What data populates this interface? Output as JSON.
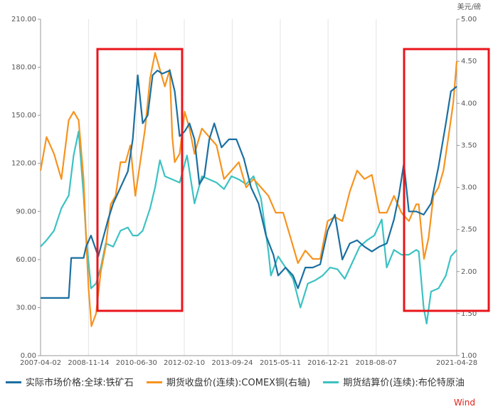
{
  "chart_data": {
    "type": "line",
    "x_ticks": [
      "2007-04-02",
      "2008-11-14",
      "2010-06-30",
      "2012-02-10",
      "2013-09-24",
      "2015-05-11",
      "2016-12-21",
      "2018-08-07",
      "2021-04-28"
    ],
    "y_left": {
      "ticks": [
        "0.00",
        "30.00",
        "60.00",
        "90.00",
        "120.00",
        "150.00",
        "180.00",
        "210.00"
      ],
      "lim": [
        0,
        210
      ]
    },
    "y_right": {
      "unit": "美元/磅",
      "ticks": [
        "1.00",
        "1.50",
        "2.00",
        "2.50",
        "3.00",
        "3.50",
        "4.00",
        "4.50",
        "5.00"
      ],
      "lim": [
        1.0,
        5.0
      ]
    },
    "grid": "vertical",
    "series": [
      {
        "name": "实际市场价格:全球:铁矿石",
        "axis": "left",
        "color": "#1a6fa0",
        "points": [
          [
            "2007-04-02",
            36
          ],
          [
            "2008-01-15",
            36
          ],
          [
            "2008-03-15",
            36
          ],
          [
            "2008-04-15",
            61
          ],
          [
            "2008-09-15",
            61
          ],
          [
            "2008-10-15",
            68
          ],
          [
            "2008-12-15",
            75
          ],
          [
            "2009-03-15",
            62
          ],
          [
            "2009-07-15",
            85
          ],
          [
            "2009-09-15",
            95
          ],
          [
            "2009-12-15",
            105
          ],
          [
            "2010-03-15",
            115
          ],
          [
            "2010-05-15",
            135
          ],
          [
            "2010-07-15",
            175
          ],
          [
            "2010-09-15",
            145
          ],
          [
            "2010-11-15",
            150
          ],
          [
            "2011-01-15",
            175
          ],
          [
            "2011-03-15",
            178
          ],
          [
            "2011-05-15",
            176
          ],
          [
            "2011-08-15",
            178
          ],
          [
            "2011-10-15",
            165
          ],
          [
            "2011-12-15",
            137
          ],
          [
            "2012-02-15",
            140
          ],
          [
            "2012-04-15",
            145
          ],
          [
            "2012-06-15",
            135
          ],
          [
            "2012-08-15",
            107
          ],
          [
            "2012-10-15",
            112
          ],
          [
            "2012-12-15",
            135
          ],
          [
            "2013-02-15",
            145
          ],
          [
            "2013-05-15",
            130
          ],
          [
            "2013-08-15",
            135
          ],
          [
            "2013-11-15",
            135
          ],
          [
            "2014-02-15",
            123
          ],
          [
            "2014-05-15",
            105
          ],
          [
            "2014-08-15",
            95
          ],
          [
            "2014-11-15",
            75
          ],
          [
            "2015-02-15",
            63
          ],
          [
            "2015-04-15",
            50
          ],
          [
            "2015-07-15",
            55
          ],
          [
            "2015-10-15",
            50
          ],
          [
            "2015-12-15",
            42
          ],
          [
            "2016-03-15",
            55
          ],
          [
            "2016-06-15",
            55
          ],
          [
            "2016-09-15",
            57
          ],
          [
            "2016-12-15",
            78
          ],
          [
            "2017-03-15",
            88
          ],
          [
            "2017-06-15",
            60
          ],
          [
            "2017-09-15",
            70
          ],
          [
            "2017-12-15",
            72
          ],
          [
            "2018-03-15",
            68
          ],
          [
            "2018-06-15",
            65
          ],
          [
            "2018-09-15",
            68
          ],
          [
            "2018-12-15",
            70
          ],
          [
            "2019-03-15",
            85
          ],
          [
            "2019-05-15",
            100
          ],
          [
            "2019-07-15",
            120
          ],
          [
            "2019-09-15",
            90
          ],
          [
            "2019-12-15",
            90
          ],
          [
            "2020-03-15",
            88
          ],
          [
            "2020-06-15",
            95
          ],
          [
            "2020-09-15",
            118
          ],
          [
            "2020-12-15",
            145
          ],
          [
            "2021-02-15",
            165
          ],
          [
            "2021-04-28",
            168
          ]
        ]
      },
      {
        "name": "期货收盘价(连续):COMEX铜(右轴)",
        "axis": "right",
        "color": "#f7931e",
        "points": [
          [
            "2007-04-02",
            3.2
          ],
          [
            "2007-06-15",
            3.6
          ],
          [
            "2007-09-15",
            3.4
          ],
          [
            "2007-12-15",
            3.1
          ],
          [
            "2008-03-15",
            3.8
          ],
          [
            "2008-05-15",
            3.9
          ],
          [
            "2008-07-15",
            3.8
          ],
          [
            "2008-09-15",
            3.1
          ],
          [
            "2008-10-15",
            2.4
          ],
          [
            "2008-11-15",
            1.8
          ],
          [
            "2008-12-20",
            1.35
          ],
          [
            "2009-02-15",
            1.5
          ],
          [
            "2009-04-15",
            2.0
          ],
          [
            "2009-06-15",
            2.3
          ],
          [
            "2009-08-15",
            2.8
          ],
          [
            "2009-10-15",
            2.9
          ],
          [
            "2009-12-15",
            3.3
          ],
          [
            "2010-02-15",
            3.3
          ],
          [
            "2010-04-15",
            3.5
          ],
          [
            "2010-06-15",
            2.9
          ],
          [
            "2010-08-15",
            3.3
          ],
          [
            "2010-10-15",
            3.7
          ],
          [
            "2010-12-15",
            4.3
          ],
          [
            "2011-02-15",
            4.6
          ],
          [
            "2011-04-15",
            4.4
          ],
          [
            "2011-06-15",
            4.2
          ],
          [
            "2011-08-15",
            4.4
          ],
          [
            "2011-09-15",
            3.6
          ],
          [
            "2011-10-15",
            3.3
          ],
          [
            "2011-12-15",
            3.4
          ],
          [
            "2012-02-15",
            3.9
          ],
          [
            "2012-04-15",
            3.7
          ],
          [
            "2012-06-15",
            3.4
          ],
          [
            "2012-09-15",
            3.7
          ],
          [
            "2012-12-15",
            3.6
          ],
          [
            "2013-03-15",
            3.5
          ],
          [
            "2013-06-15",
            3.1
          ],
          [
            "2013-09-15",
            3.2
          ],
          [
            "2013-12-15",
            3.3
          ],
          [
            "2014-03-15",
            3.0
          ],
          [
            "2014-06-15",
            3.1
          ],
          [
            "2014-09-15",
            3.0
          ],
          [
            "2014-12-15",
            2.9
          ],
          [
            "2015-03-15",
            2.7
          ],
          [
            "2015-06-15",
            2.7
          ],
          [
            "2015-09-15",
            2.4
          ],
          [
            "2015-12-15",
            2.1
          ],
          [
            "2016-03-15",
            2.25
          ],
          [
            "2016-06-15",
            2.15
          ],
          [
            "2016-09-15",
            2.15
          ],
          [
            "2016-12-15",
            2.6
          ],
          [
            "2017-03-15",
            2.65
          ],
          [
            "2017-06-15",
            2.6
          ],
          [
            "2017-09-15",
            2.95
          ],
          [
            "2017-12-15",
            3.2
          ],
          [
            "2018-03-15",
            3.1
          ],
          [
            "2018-06-15",
            3.15
          ],
          [
            "2018-09-15",
            2.7
          ],
          [
            "2018-12-15",
            2.7
          ],
          [
            "2019-03-15",
            2.9
          ],
          [
            "2019-06-15",
            2.7
          ],
          [
            "2019-09-15",
            2.6
          ],
          [
            "2019-12-15",
            2.8
          ],
          [
            "2020-01-15",
            2.8
          ],
          [
            "2020-03-20",
            2.15
          ],
          [
            "2020-05-15",
            2.4
          ],
          [
            "2020-07-15",
            2.9
          ],
          [
            "2020-09-15",
            3.0
          ],
          [
            "2020-11-15",
            3.2
          ],
          [
            "2021-01-15",
            3.6
          ],
          [
            "2021-03-15",
            4.0
          ],
          [
            "2021-04-28",
            4.5
          ]
        ]
      },
      {
        "name": "期货结算价(连续):布伦特原油",
        "axis": "left",
        "color": "#3cc2c2",
        "points": [
          [
            "2007-04-02",
            68
          ],
          [
            "2007-06-15",
            72
          ],
          [
            "2007-09-15",
            78
          ],
          [
            "2007-12-15",
            92
          ],
          [
            "2008-03-15",
            100
          ],
          [
            "2008-05-15",
            125
          ],
          [
            "2008-07-15",
            140
          ],
          [
            "2008-09-15",
            100
          ],
          [
            "2008-10-15",
            75
          ],
          [
            "2008-12-15",
            42
          ],
          [
            "2009-02-15",
            45
          ],
          [
            "2009-04-15",
            55
          ],
          [
            "2009-06-15",
            70
          ],
          [
            "2009-09-15",
            68
          ],
          [
            "2009-12-15",
            78
          ],
          [
            "2010-03-15",
            80
          ],
          [
            "2010-05-15",
            75
          ],
          [
            "2010-07-15",
            75
          ],
          [
            "2010-09-15",
            78
          ],
          [
            "2010-12-15",
            92
          ],
          [
            "2011-02-15",
            105
          ],
          [
            "2011-04-15",
            122
          ],
          [
            "2011-06-15",
            112
          ],
          [
            "2011-09-15",
            110
          ],
          [
            "2011-12-15",
            108
          ],
          [
            "2012-03-15",
            125
          ],
          [
            "2012-06-15",
            95
          ],
          [
            "2012-09-15",
            112
          ],
          [
            "2012-12-15",
            110
          ],
          [
            "2013-03-15",
            108
          ],
          [
            "2013-06-15",
            104
          ],
          [
            "2013-09-15",
            112
          ],
          [
            "2013-12-15",
            110
          ],
          [
            "2014-03-15",
            107
          ],
          [
            "2014-06-15",
            112
          ],
          [
            "2014-09-15",
            98
          ],
          [
            "2014-12-15",
            65
          ],
          [
            "2015-01-15",
            50
          ],
          [
            "2015-04-15",
            62
          ],
          [
            "2015-07-15",
            55
          ],
          [
            "2015-10-15",
            48
          ],
          [
            "2016-01-15",
            30
          ],
          [
            "2016-04-15",
            45
          ],
          [
            "2016-07-15",
            47
          ],
          [
            "2016-10-15",
            50
          ],
          [
            "2017-01-15",
            55
          ],
          [
            "2017-04-15",
            54
          ],
          [
            "2017-07-15",
            48
          ],
          [
            "2017-10-15",
            58
          ],
          [
            "2018-01-15",
            68
          ],
          [
            "2018-04-15",
            72
          ],
          [
            "2018-07-15",
            75
          ],
          [
            "2018-10-15",
            85
          ],
          [
            "2018-12-15",
            55
          ],
          [
            "2019-03-15",
            66
          ],
          [
            "2019-06-15",
            63
          ],
          [
            "2019-09-15",
            63
          ],
          [
            "2019-12-15",
            66
          ],
          [
            "2020-01-15",
            65
          ],
          [
            "2020-03-15",
            30
          ],
          [
            "2020-04-21",
            20
          ],
          [
            "2020-06-15",
            40
          ],
          [
            "2020-09-15",
            42
          ],
          [
            "2020-12-15",
            50
          ],
          [
            "2021-02-15",
            62
          ],
          [
            "2021-04-28",
            66
          ]
        ]
      }
    ]
  },
  "legend": {
    "items": [
      {
        "label": "实际市场价格:全球:铁矿石",
        "color": "#1a6fa0"
      },
      {
        "label": "期货收盘价(连续):COMEX铜(右轴)",
        "color": "#f7931e"
      },
      {
        "label": "期货结算价(连续):布伦特原油",
        "color": "#3cc2c2"
      }
    ]
  },
  "source": "Wind",
  "highlight_color": "#e8151b"
}
